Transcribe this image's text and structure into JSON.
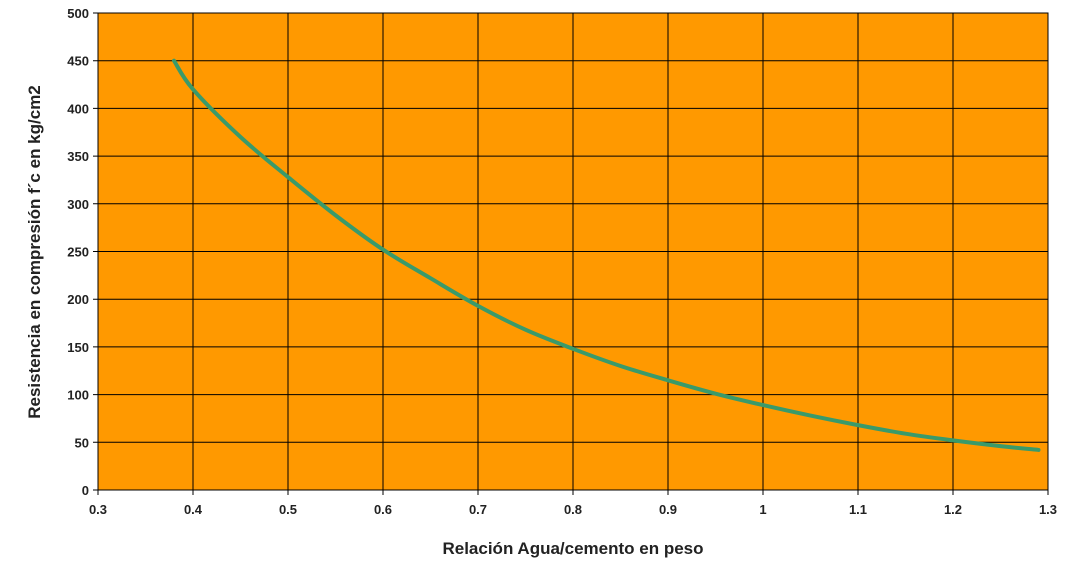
{
  "chart_data": {
    "type": "line",
    "title": "",
    "xlabel": "Relación Agua/cemento en peso",
    "ylabel": "Resistencia en compresión f´c en kg/cm2",
    "xlim": [
      0.3,
      1.3
    ],
    "ylim": [
      0,
      500
    ],
    "x_ticks": [
      "0.3",
      "0.4",
      "0.5",
      "0.6",
      "0.7",
      "0.8",
      "0.9",
      "1",
      "1.1",
      "1.2",
      "1.3"
    ],
    "y_ticks": [
      "0",
      "50",
      "100",
      "150",
      "200",
      "250",
      "300",
      "350",
      "400",
      "450",
      "500"
    ],
    "grid": true,
    "legend": "none",
    "colors": {
      "plot_background": "#ff9900",
      "grid": "#000000",
      "line": "#3a9a6a"
    },
    "series": [
      {
        "x": [
          0.38,
          0.4,
          0.45,
          0.5,
          0.55,
          0.6,
          0.65,
          0.7,
          0.75,
          0.8,
          0.85,
          0.9,
          0.95,
          1.0,
          1.05,
          1.1,
          1.15,
          1.2,
          1.25,
          1.29
        ],
        "values": [
          450,
          420,
          370,
          328,
          288,
          252,
          222,
          193,
          168,
          148,
          130,
          115,
          101,
          89,
          78,
          68,
          59,
          52,
          46,
          42
        ]
      }
    ]
  }
}
